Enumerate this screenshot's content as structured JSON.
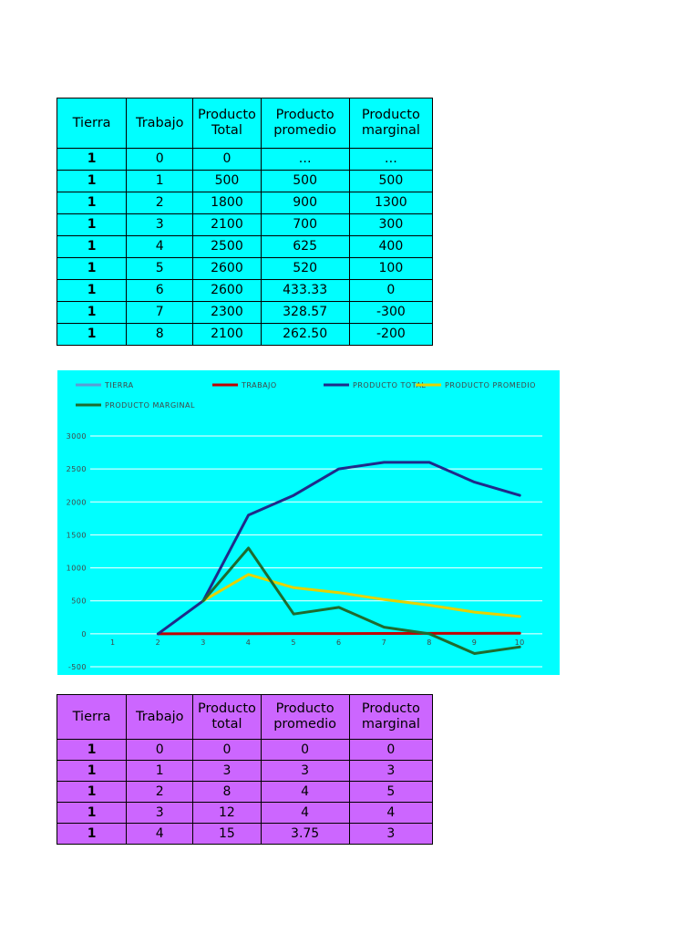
{
  "table1": {
    "headers": [
      [
        "Tierra"
      ],
      [
        "Trabajo"
      ],
      [
        "Producto",
        "Total"
      ],
      [
        "Producto",
        "promedio"
      ],
      [
        "Producto",
        "marginal"
      ]
    ],
    "rows": [
      [
        "1",
        "0",
        "0",
        "…",
        "…"
      ],
      [
        "1",
        "1",
        "500",
        "500",
        "500"
      ],
      [
        "1",
        "2",
        "1800",
        "900",
        "1300"
      ],
      [
        "1",
        "3",
        "2100",
        "700",
        "300"
      ],
      [
        "1",
        "4",
        "2500",
        "625",
        "400"
      ],
      [
        "1",
        "5",
        "2600",
        "520",
        "100"
      ],
      [
        "1",
        "6",
        "2600",
        "433.33",
        "0"
      ],
      [
        "1",
        "7",
        "2300",
        "328.57",
        "-300"
      ],
      [
        "1",
        "8",
        "2100",
        "262.50",
        "-200"
      ]
    ]
  },
  "table2": {
    "headers": [
      [
        "Tierra"
      ],
      [
        "Trabajo"
      ],
      [
        "Producto",
        "total"
      ],
      [
        "Producto",
        "promedio"
      ],
      [
        "Producto",
        "marginal"
      ]
    ],
    "rows": [
      [
        "1",
        "0",
        "0",
        "0",
        "0"
      ],
      [
        "1",
        "1",
        "3",
        "3",
        "3"
      ],
      [
        "1",
        "2",
        "8",
        "4",
        "5"
      ],
      [
        "1",
        "3",
        "12",
        "4",
        "4"
      ],
      [
        "1",
        "4",
        "15",
        "3.75",
        "3"
      ]
    ]
  },
  "chart_data": {
    "type": "line",
    "background": "#00ffff",
    "legend_position": "top",
    "grid": true,
    "x": [
      1,
      2,
      3,
      4,
      5,
      6,
      7,
      8,
      9,
      10
    ],
    "ylim": [
      -500,
      3000
    ],
    "yticks": [
      -500,
      0,
      500,
      1000,
      1500,
      2000,
      2500,
      3000
    ],
    "series": [
      {
        "name": "TIERRA",
        "color": "#5b9bd5",
        "values": [
          null,
          null,
          null,
          null,
          null,
          null,
          null,
          null,
          null,
          null
        ]
      },
      {
        "name": "TRABAJO",
        "color": "#c00000",
        "values": [
          null,
          0,
          1,
          2,
          3,
          4,
          5,
          6,
          7,
          8
        ]
      },
      {
        "name": "PRODUCTO TOTAL",
        "color": "#1f2a8a",
        "values": [
          null,
          0,
          500,
          1800,
          2100,
          2500,
          2600,
          2600,
          2300,
          2100
        ]
      },
      {
        "name": "PRODUCTO PROMEDIO",
        "color": "#e6d200",
        "values": [
          null,
          null,
          500,
          900,
          700,
          625,
          520,
          433.33,
          328.57,
          262.5
        ]
      },
      {
        "name": "PRODUCTO MARGINAL",
        "color": "#1e6b2e",
        "values": [
          null,
          null,
          500,
          1300,
          300,
          400,
          100,
          0,
          -300,
          -200
        ]
      }
    ]
  }
}
